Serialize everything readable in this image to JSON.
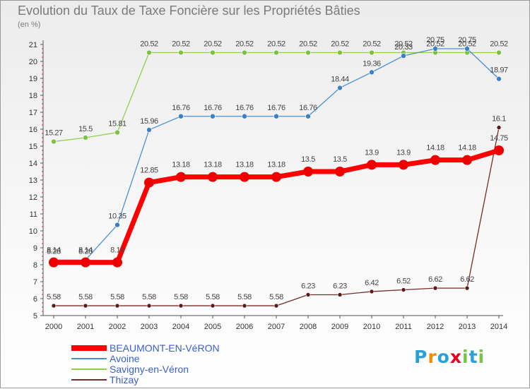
{
  "title": "Evolution du Taux de Taxe Foncière sur les Propriétés Bâties",
  "unit_label": "(en %)",
  "logo": {
    "text": "Proxiti",
    "colors": [
      "#2a9fd8",
      "#f28c00",
      "#2a9fd8",
      "#e8001c",
      "#7cc242",
      "#2a9fd8",
      "#7cc242"
    ]
  },
  "chart_data": {
    "type": "line",
    "title": "Evolution du Taux de Taxe Foncière sur les Propriétés Bâties",
    "ylabel": "(en %)",
    "xlabel": "",
    "ylim": [
      5,
      21
    ],
    "yticks": [
      "5",
      "6",
      "7",
      "8",
      "9",
      "10",
      "11",
      "12",
      "13",
      "14",
      "15",
      "16",
      "17",
      "18",
      "19",
      "20",
      "21"
    ],
    "grid": false,
    "legend_position": "bottom-left",
    "x": [
      "2000",
      "2001",
      "2002",
      "2003",
      "2004",
      "2005",
      "2006",
      "2007",
      "2008",
      "2009",
      "2010",
      "2011",
      "2012",
      "2013",
      "2014"
    ],
    "series": [
      {
        "name": "Thizay",
        "color": "#7a2a2a",
        "point": "#5a1a1a",
        "width": 1.3,
        "r": 3,
        "values": [
          5.58,
          5.58,
          5.58,
          5.58,
          5.58,
          5.58,
          5.58,
          5.58,
          6.23,
          6.23,
          6.42,
          6.52,
          6.62,
          6.62,
          16.1
        ],
        "labels": [
          "5.58",
          "5.58",
          "5.58",
          "5.58",
          "5.58",
          "5.58",
          "5.58",
          "5.58",
          "6.23",
          "6.23",
          "6.42",
          "6.52",
          "6.62",
          "6.62",
          "16.1"
        ]
      },
      {
        "name": "Savigny-en-Véron",
        "color": "#8fcf4f",
        "point": "#7cc242",
        "width": 1.3,
        "r": 3.5,
        "values": [
          15.27,
          15.5,
          15.81,
          20.52,
          20.52,
          20.52,
          20.52,
          20.52,
          20.52,
          20.52,
          20.52,
          20.52,
          20.52,
          20.52,
          20.52
        ],
        "labels": [
          "15.27",
          "15.5",
          "15.81",
          "20.52",
          "20.52",
          "20.52",
          "20.52",
          "20.52",
          "20.52",
          "20.52",
          "20.52",
          "20.52",
          "20.52",
          "20.52",
          "20.52"
        ]
      },
      {
        "name": "Avoine",
        "color": "#4a90d0",
        "point": "#3a80c8",
        "width": 1.3,
        "r": 3.5,
        "values": [
          8.28,
          8.28,
          10.35,
          15.96,
          16.76,
          16.76,
          16.76,
          16.76,
          16.76,
          18.44,
          19.36,
          20.33,
          20.75,
          20.75,
          18.97
        ],
        "labels": [
          "8.28",
          "8.28",
          "10.35",
          "15.96",
          "16.76",
          "16.76",
          "16.76",
          "16.76",
          "16.76",
          "18.44",
          "19.36",
          "20.33",
          "20.75",
          "20.75",
          "18.97"
        ]
      },
      {
        "name": "BEAUMONT-EN-VéRON",
        "color": "#ff0000",
        "point": "#ee0000",
        "width": 7,
        "r": 7,
        "values": [
          8.14,
          8.14,
          8.14,
          12.85,
          13.18,
          13.18,
          13.18,
          13.18,
          13.5,
          13.5,
          13.9,
          13.9,
          14.18,
          14.18,
          14.75
        ],
        "labels": [
          "8.14",
          "8.14",
          "8.14",
          "12.85",
          "13.18",
          "13.18",
          "13.18",
          "13.18",
          "13.5",
          "13.5",
          "13.9",
          "13.9",
          "14.18",
          "14.18",
          "14.75"
        ]
      }
    ],
    "legend": [
      "BEAUMONT-EN-VéRON",
      "Avoine",
      "Savigny-en-Véron",
      "Thizay"
    ]
  }
}
